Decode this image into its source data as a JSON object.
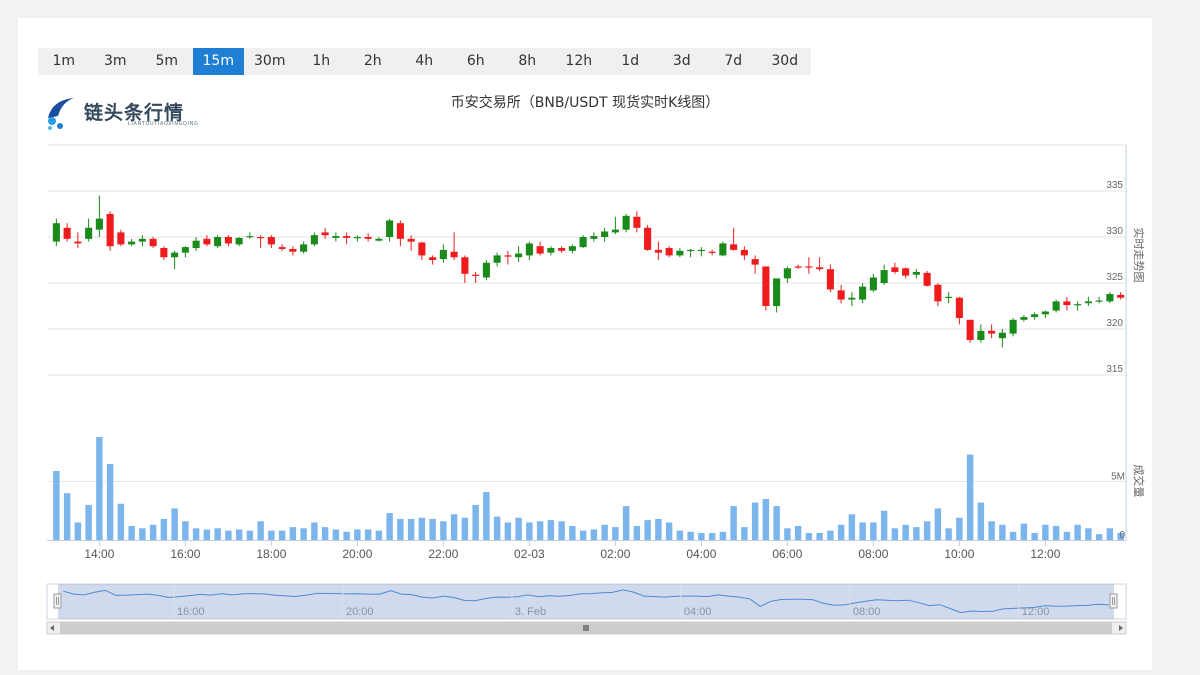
{
  "timeframes": [
    {
      "label": "1m",
      "active": false
    },
    {
      "label": "3m",
      "active": false
    },
    {
      "label": "5m",
      "active": false
    },
    {
      "label": "15m",
      "active": true
    },
    {
      "label": "30m",
      "active": false
    },
    {
      "label": "1h",
      "active": false
    },
    {
      "label": "2h",
      "active": false
    },
    {
      "label": "4h",
      "active": false
    },
    {
      "label": "6h",
      "active": false
    },
    {
      "label": "8h",
      "active": false
    },
    {
      "label": "12h",
      "active": false
    },
    {
      "label": "1d",
      "active": false
    },
    {
      "label": "3d",
      "active": false
    },
    {
      "label": "7d",
      "active": false
    },
    {
      "label": "30d",
      "active": false
    }
  ],
  "logo": {
    "text": "链头条行情",
    "subtext": "LIANTOUTIAOXINGQING"
  },
  "colors": {
    "up": "#1a8a1a",
    "down": "#ee1c1c",
    "volume": "#7cb5ec",
    "active_tab": "#1f7fd4"
  },
  "chart_data": {
    "type": "candlestick",
    "title": "币安交易所（BNB/USDT 现货实时K线图）",
    "price_axis_title": "实时走势图",
    "volume_axis_title": "成交量",
    "price_ticks": [
      "315",
      "320",
      "325",
      "330",
      "335"
    ],
    "price_tick_values": [
      315,
      320,
      325,
      330,
      335
    ],
    "volume_ticks": [
      "0",
      "5M"
    ],
    "volume_tick_values": [
      0,
      5
    ],
    "ylim_price": [
      310,
      340
    ],
    "ylim_volume": [
      0,
      10
    ],
    "x_ticks": [
      "14:00",
      "16:00",
      "18:00",
      "20:00",
      "22:00",
      "02-03",
      "02:00",
      "04:00",
      "06:00",
      "08:00",
      "10:00",
      "12:00"
    ],
    "x_tick_index": [
      4,
      12,
      20,
      28,
      36,
      44,
      52,
      60,
      68,
      76,
      84,
      92
    ],
    "navigator_ticks": [
      "16:00",
      "20:00",
      "3. Feb",
      "04:00",
      "08:00",
      "12:00"
    ],
    "navigator_tick_index": [
      12,
      28,
      44,
      60,
      76,
      92
    ],
    "ohlc": [
      [
        0,
        329.5,
        332.0,
        329.0,
        331.5
      ],
      [
        1,
        331.0,
        331.5,
        329.5,
        329.8
      ],
      [
        2,
        329.5,
        330.5,
        328.8,
        329.3
      ],
      [
        3,
        329.8,
        332.0,
        329.5,
        331.0
      ],
      [
        4,
        330.8,
        334.5,
        330.0,
        332.0
      ],
      [
        5,
        332.5,
        332.8,
        328.5,
        329.0
      ],
      [
        6,
        330.5,
        330.8,
        329.0,
        329.2
      ],
      [
        7,
        329.2,
        329.8,
        329.0,
        329.5
      ],
      [
        8,
        329.5,
        330.2,
        329.0,
        329.8
      ],
      [
        9,
        329.8,
        330.0,
        328.8,
        329.0
      ],
      [
        10,
        328.8,
        329.0,
        327.5,
        327.8
      ],
      [
        11,
        327.8,
        328.5,
        326.5,
        328.3
      ],
      [
        12,
        328.3,
        329.0,
        327.8,
        328.9
      ],
      [
        13,
        328.8,
        330.0,
        328.5,
        329.6
      ],
      [
        14,
        329.8,
        330.2,
        329.0,
        329.2
      ],
      [
        15,
        329.0,
        330.2,
        328.8,
        330.0
      ],
      [
        16,
        330.0,
        330.2,
        329.0,
        329.3
      ],
      [
        17,
        329.2,
        330.0,
        329.0,
        329.9
      ],
      [
        18,
        330.0,
        330.5,
        329.8,
        330.1
      ],
      [
        19,
        330.0,
        330.2,
        328.8,
        329.9
      ],
      [
        20,
        330.0,
        330.2,
        328.8,
        329.2
      ],
      [
        21,
        328.9,
        329.2,
        328.5,
        328.7
      ],
      [
        22,
        328.7,
        329.0,
        328.0,
        328.4
      ],
      [
        23,
        328.4,
        329.5,
        328.2,
        329.2
      ],
      [
        24,
        329.2,
        330.5,
        329.0,
        330.2
      ],
      [
        25,
        330.5,
        331.0,
        329.8,
        330.2
      ],
      [
        26,
        329.9,
        330.5,
        329.5,
        330.1
      ],
      [
        27,
        330.1,
        330.5,
        329.2,
        329.9
      ],
      [
        28,
        329.9,
        330.2,
        329.5,
        330.0
      ],
      [
        29,
        330.0,
        330.4,
        329.5,
        329.8
      ],
      [
        30,
        329.6,
        330.0,
        329.5,
        329.8
      ],
      [
        31,
        330.0,
        332.0,
        329.5,
        331.8
      ],
      [
        32,
        331.5,
        331.8,
        329.0,
        329.8
      ],
      [
        33,
        329.8,
        330.2,
        328.5,
        329.5
      ],
      [
        34,
        329.4,
        329.5,
        327.5,
        328.0
      ],
      [
        35,
        327.8,
        328.0,
        327.0,
        327.5
      ],
      [
        36,
        327.6,
        329.2,
        327.2,
        328.6
      ],
      [
        37,
        328.4,
        330.5,
        327.5,
        327.8
      ],
      [
        38,
        327.8,
        328.0,
        325.0,
        326.0
      ],
      [
        39,
        325.9,
        326.2,
        325.0,
        325.8
      ],
      [
        40,
        325.6,
        327.5,
        325.3,
        327.2
      ],
      [
        41,
        327.2,
        328.3,
        326.8,
        328.0
      ],
      [
        42,
        328.0,
        328.5,
        327.0,
        327.9
      ],
      [
        43,
        327.8,
        329.0,
        327.3,
        328.2
      ],
      [
        44,
        328.0,
        329.5,
        327.5,
        329.3
      ],
      [
        45,
        329.0,
        329.5,
        328.0,
        328.2
      ],
      [
        46,
        328.3,
        329.0,
        328.0,
        328.8
      ],
      [
        47,
        328.8,
        329.0,
        328.3,
        328.5
      ],
      [
        48,
        328.5,
        329.2,
        328.2,
        329.0
      ],
      [
        49,
        328.9,
        330.2,
        328.8,
        330.0
      ],
      [
        50,
        329.8,
        330.5,
        329.5,
        330.1
      ],
      [
        51,
        330.0,
        331.0,
        329.5,
        330.6
      ],
      [
        52,
        330.5,
        332.2,
        330.3,
        330.8
      ],
      [
        53,
        330.8,
        332.5,
        330.5,
        332.3
      ],
      [
        54,
        332.2,
        332.8,
        330.5,
        331.0
      ],
      [
        55,
        331.0,
        331.3,
        328.5,
        328.6
      ],
      [
        56,
        328.6,
        329.5,
        327.5,
        328.3
      ],
      [
        57,
        328.8,
        329.0,
        327.8,
        328.0
      ],
      [
        58,
        328.0,
        328.8,
        327.8,
        328.5
      ],
      [
        59,
        328.5,
        328.7,
        327.8,
        328.6
      ],
      [
        60,
        328.5,
        328.9,
        327.9,
        328.6
      ],
      [
        61,
        328.4,
        328.6,
        328.0,
        328.3
      ],
      [
        62,
        328.0,
        329.5,
        327.9,
        329.3
      ],
      [
        63,
        329.2,
        331.0,
        328.5,
        328.6
      ],
      [
        64,
        328.6,
        329.0,
        327.5,
        328.0
      ],
      [
        65,
        327.6,
        328.0,
        326.0,
        327.0
      ],
      [
        66,
        326.8,
        326.8,
        322.0,
        322.5
      ],
      [
        67,
        322.5,
        325.5,
        321.8,
        325.5
      ],
      [
        68,
        325.5,
        326.8,
        325.0,
        326.6
      ],
      [
        69,
        326.8,
        327.0,
        326.5,
        326.7
      ],
      [
        70,
        326.8,
        327.8,
        326.0,
        326.7
      ],
      [
        71,
        326.7,
        327.8,
        326.3,
        326.5
      ],
      [
        72,
        326.5,
        327.0,
        324.0,
        324.3
      ],
      [
        73,
        324.2,
        324.8,
        322.8,
        323.2
      ],
      [
        74,
        323.2,
        324.0,
        322.5,
        323.4
      ],
      [
        75,
        323.2,
        325.0,
        322.8,
        324.6
      ],
      [
        76,
        324.2,
        326.0,
        324.0,
        325.6
      ],
      [
        77,
        325.0,
        327.0,
        324.8,
        326.4
      ],
      [
        78,
        326.7,
        327.2,
        326.0,
        326.2
      ],
      [
        79,
        326.6,
        326.7,
        325.5,
        325.8
      ],
      [
        80,
        325.9,
        326.5,
        325.5,
        326.2
      ],
      [
        81,
        326.1,
        326.3,
        324.6,
        324.7
      ],
      [
        82,
        324.8,
        325.0,
        322.5,
        323.0
      ],
      [
        83,
        323.4,
        324.0,
        322.8,
        323.5
      ],
      [
        84,
        323.4,
        323.5,
        320.5,
        321.2
      ],
      [
        85,
        321.0,
        321.0,
        318.5,
        318.8
      ],
      [
        86,
        318.8,
        320.5,
        318.5,
        319.8
      ],
      [
        87,
        319.8,
        320.5,
        319.0,
        319.5
      ],
      [
        88,
        319.0,
        320.0,
        318.0,
        319.6
      ],
      [
        89,
        319.5,
        321.2,
        319.2,
        321.0
      ],
      [
        90,
        321.0,
        321.5,
        320.8,
        321.3
      ],
      [
        91,
        321.3,
        321.8,
        321.0,
        321.6
      ],
      [
        92,
        321.6,
        322.0,
        321.2,
        321.9
      ],
      [
        93,
        322.0,
        323.2,
        321.8,
        323.0
      ],
      [
        94,
        323.0,
        323.5,
        322.0,
        322.6
      ],
      [
        95,
        322.6,
        323.0,
        322.0,
        322.7
      ],
      [
        96,
        322.8,
        323.5,
        322.5,
        323.0
      ],
      [
        97,
        323.0,
        323.5,
        322.8,
        323.1
      ],
      [
        98,
        323.0,
        324.0,
        322.8,
        323.8
      ],
      [
        99,
        323.7,
        324.0,
        323.2,
        323.4
      ]
    ],
    "volume": [
      5.9,
      4.0,
      1.5,
      3.0,
      8.8,
      6.5,
      3.1,
      1.2,
      1.0,
      1.3,
      1.8,
      2.7,
      1.6,
      1.0,
      0.9,
      1.0,
      0.8,
      0.9,
      0.8,
      1.6,
      0.8,
      0.8,
      1.1,
      1.0,
      1.5,
      1.1,
      0.9,
      0.7,
      0.9,
      0.9,
      0.8,
      2.3,
      1.8,
      1.8,
      1.9,
      1.8,
      1.6,
      2.2,
      1.9,
      3.0,
      4.1,
      2.0,
      1.5,
      1.9,
      1.5,
      1.6,
      1.7,
      1.6,
      1.2,
      0.8,
      0.9,
      1.3,
      1.1,
      2.9,
      1.2,
      1.7,
      1.8,
      1.5,
      0.8,
      0.7,
      0.6,
      0.6,
      0.7,
      2.9,
      1.1,
      3.2,
      3.5,
      2.9,
      1.0,
      1.2,
      0.6,
      0.6,
      0.8,
      1.3,
      2.2,
      1.5,
      1.5,
      2.5,
      1.0,
      1.3,
      1.1,
      1.6,
      2.7,
      1.0,
      1.9,
      7.3,
      3.2,
      1.6,
      1.3,
      0.7,
      1.4,
      0.6,
      1.3,
      1.2,
      0.7,
      1.3,
      1.0,
      0.5,
      1.0,
      0.6
    ]
  }
}
